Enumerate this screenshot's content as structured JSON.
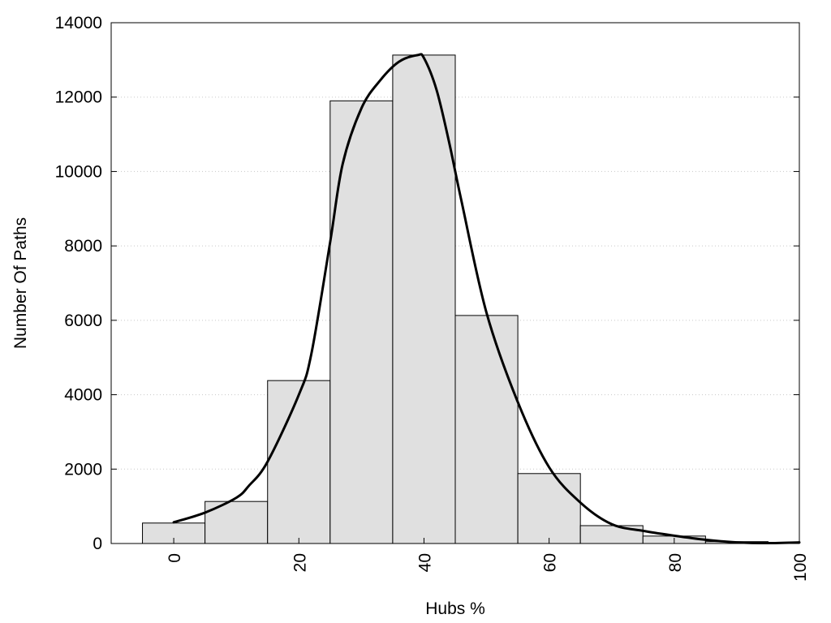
{
  "chart_data": {
    "type": "bar",
    "xlabel": "Hubs %",
    "ylabel": "Number Of Paths",
    "xlim": [
      -10,
      100
    ],
    "ylim": [
      0,
      14000
    ],
    "x_ticks": [
      0,
      20,
      40,
      60,
      80,
      100
    ],
    "y_ticks": [
      0,
      2000,
      4000,
      6000,
      8000,
      10000,
      12000,
      14000
    ],
    "grid": "horizontal dotted",
    "legend": "none",
    "bin_width": 10,
    "series": [
      {
        "type": "bar",
        "x": [
          0,
          10,
          20,
          30,
          40,
          50,
          60,
          70,
          80,
          90
        ],
        "values": [
          550,
          1130,
          4380,
          11900,
          13130,
          6130,
          1880,
          480,
          200,
          50
        ]
      },
      {
        "type": "line",
        "x": [
          0,
          5,
          10,
          12,
          15,
          20,
          22,
          25,
          27,
          30,
          33,
          36,
          39,
          40,
          42,
          44,
          46,
          50,
          55,
          60,
          65,
          70,
          75,
          80,
          85,
          90,
          95,
          100
        ],
        "values": [
          570,
          830,
          1230,
          1550,
          2200,
          4000,
          5100,
          8100,
          10200,
          11700,
          12450,
          12950,
          13130,
          13050,
          12200,
          10800,
          9200,
          6200,
          3800,
          2050,
          1100,
          520,
          340,
          210,
          100,
          30,
          10,
          30
        ]
      }
    ],
    "colors": {
      "bar_fill": "#e0e0e0",
      "bar_stroke": "#000000",
      "curve": "#000000",
      "grid": "#c8c8c8"
    }
  }
}
